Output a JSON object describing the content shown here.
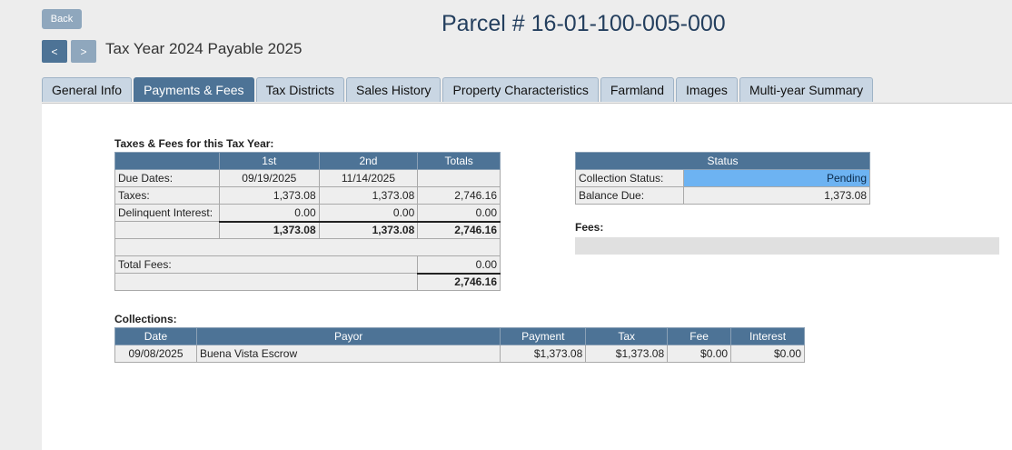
{
  "header": {
    "back_label": "Back",
    "prev_label": "<",
    "next_label": ">",
    "tax_year": "Tax Year 2024 Payable 2025",
    "parcel_title": "Parcel # 16-01-100-005-000"
  },
  "tabs": [
    {
      "label": "General Info",
      "active": false
    },
    {
      "label": "Payments & Fees",
      "active": true
    },
    {
      "label": "Tax Districts",
      "active": false
    },
    {
      "label": "Sales History",
      "active": false
    },
    {
      "label": "Property Characteristics",
      "active": false
    },
    {
      "label": "Farmland",
      "active": false
    },
    {
      "label": "Images",
      "active": false
    },
    {
      "label": "Multi-year Summary",
      "active": false
    }
  ],
  "taxes_fees": {
    "section_label": "Taxes & Fees for this Tax Year:",
    "headers": [
      "1st",
      "2nd",
      "Totals"
    ],
    "due_dates": {
      "label": "Due Dates:",
      "first": "09/19/2025",
      "second": "11/14/2025",
      "total": ""
    },
    "taxes": {
      "label": "Taxes:",
      "first": "1,373.08",
      "second": "1,373.08",
      "total": "2,746.16"
    },
    "delinquent": {
      "label": "Delinquent Interest:",
      "first": "0.00",
      "second": "0.00",
      "total": "0.00"
    },
    "subtotal": {
      "first": "1,373.08",
      "second": "1,373.08",
      "total": "2,746.16"
    },
    "total_fees": {
      "label": "Total Fees:",
      "value": "0.00"
    },
    "grand_total": "2,746.16"
  },
  "status": {
    "header": "Status",
    "collection_label": "Collection Status:",
    "collection_value": "Pending",
    "balance_label": "Balance Due:",
    "balance_value": "1,373.08"
  },
  "fees": {
    "section_label": "Fees:"
  },
  "collections": {
    "section_label": "Collections:",
    "headers": [
      "Date",
      "Payor",
      "Payment",
      "Tax",
      "Fee",
      "Interest"
    ],
    "rows": [
      {
        "date": "09/08/2025",
        "payor": "Buena Vista Escrow",
        "payment": "$1,373.08",
        "tax": "$1,373.08",
        "fee": "$0.00",
        "interest": "$0.00"
      }
    ]
  }
}
